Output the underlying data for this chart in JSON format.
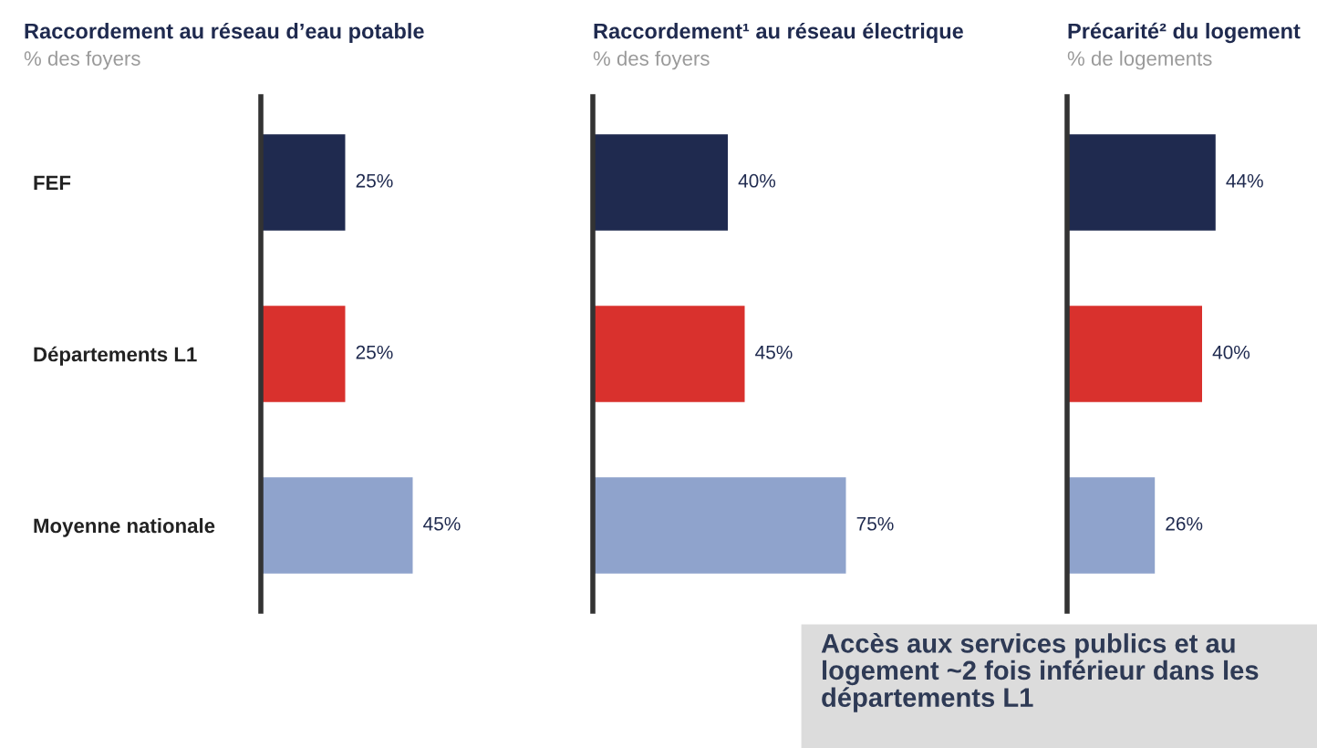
{
  "chart_data": [
    {
      "type": "bar",
      "orientation": "horizontal",
      "title": "Raccordement au réseau d’eau potable",
      "subtitle": "% des foyers",
      "categories": [
        "FEF",
        "Départements L1",
        "Moyenne nationale"
      ],
      "values": [
        25,
        25,
        45
      ],
      "value_labels": [
        "25%",
        "25%",
        "45%"
      ],
      "colors": [
        "#1f2a4f",
        "#d9312d",
        "#8fa3cc"
      ]
    },
    {
      "type": "bar",
      "orientation": "horizontal",
      "title": "Raccordement¹ au réseau électrique",
      "subtitle": "% des foyers",
      "values": [
        40,
        45,
        75
      ],
      "value_labels": [
        "40%",
        "45%",
        "75%"
      ],
      "colors": [
        "#1f2a4f",
        "#d9312d",
        "#8fa3cc"
      ]
    },
    {
      "type": "bar",
      "orientation": "horizontal",
      "title": "Précarité² du logement",
      "subtitle": "% de logements",
      "values": [
        44,
        40,
        26
      ],
      "value_labels": [
        "44%",
        "40%",
        "26%"
      ],
      "colors": [
        "#1f2a4f",
        "#d9312d",
        "#8fa3cc"
      ],
      "annotations": [
        "Accès aux services publics et au logement ~2 fois inférieur dans les départements L1"
      ]
    }
  ]
}
